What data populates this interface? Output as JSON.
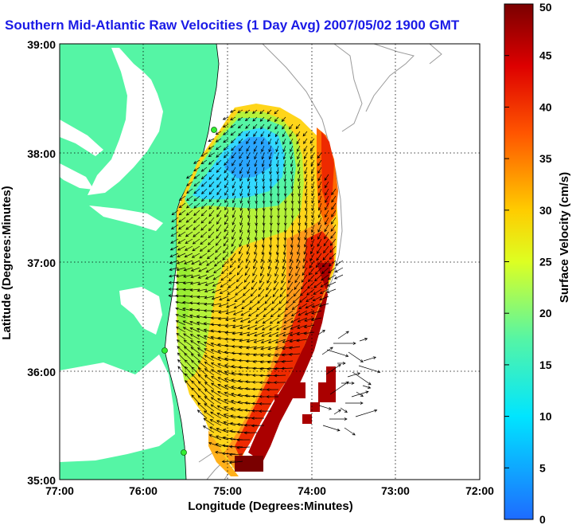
{
  "title": "Southern Mid-Atlantic Raw Velocities (1 Day Avg) 2007/05/02 1900 GMT",
  "x_axis": {
    "label": "Longitude (Degrees:Minutes)",
    "ticks": [
      "77:00",
      "76:00",
      "75:00",
      "74:00",
      "73:00",
      "72:00"
    ]
  },
  "y_axis": {
    "label": "Latitude (Degrees:Minutes)",
    "ticks": [
      "39:00",
      "38:00",
      "37:00",
      "36:00",
      "35:00"
    ]
  },
  "colorbar": {
    "label": "Surface Velocity (cm/s)",
    "min": 0,
    "max": 50,
    "ticks": [
      "0",
      "5",
      "10",
      "15",
      "20",
      "25",
      "30",
      "35",
      "40",
      "45",
      "50"
    ]
  },
  "colors": {
    "title": "#1a1ae6",
    "land": "#55f5a5",
    "water": "#ffffff",
    "grid": "#000000",
    "bathymetry": "#9a9a9a",
    "station": "#33ee33"
  }
}
